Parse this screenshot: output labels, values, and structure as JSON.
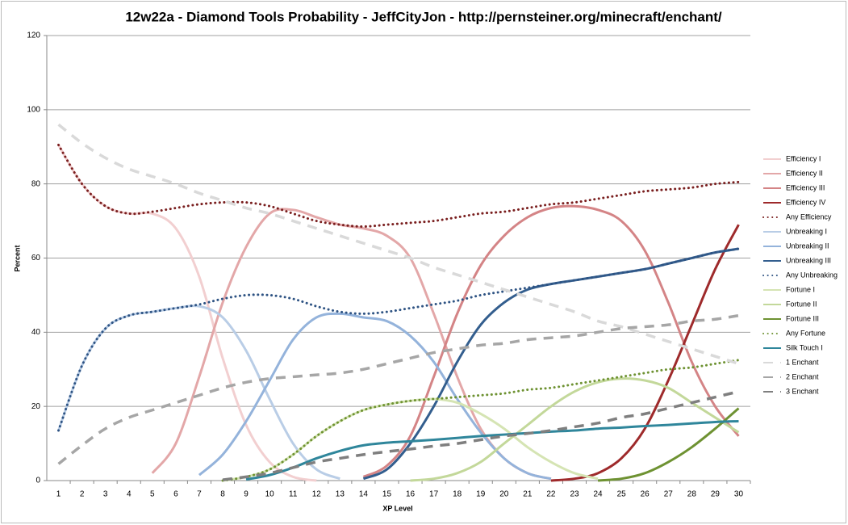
{
  "chart_data": {
    "type": "line",
    "title": "12w22a - Diamond Tools Probability - JeffCityJon - http://pernsteiner.org/minecraft/enchant/",
    "x_label": "XP Level",
    "y_label": "Percent",
    "categories": [
      1,
      2,
      3,
      4,
      5,
      6,
      7,
      8,
      9,
      10,
      11,
      12,
      13,
      14,
      15,
      16,
      17,
      18,
      19,
      20,
      21,
      22,
      23,
      24,
      25,
      26,
      27,
      28,
      29,
      30
    ],
    "ylim": [
      0,
      120
    ],
    "yticks": [
      0,
      20,
      40,
      60,
      80,
      100,
      120
    ],
    "grid": true,
    "legend": "right",
    "series": [
      {
        "name": "Efficiency I",
        "color": "#f2cfd0",
        "style": "solid",
        "values": [
          90.5,
          80,
          74,
          72,
          72,
          68,
          55,
          33,
          15,
          5,
          1,
          0,
          null,
          null,
          null,
          null,
          null,
          null,
          null,
          null,
          null,
          null,
          null,
          null,
          null,
          null,
          null,
          null,
          null,
          null
        ]
      },
      {
        "name": "Efficiency II",
        "color": "#e3a7a8",
        "style": "solid",
        "values": [
          null,
          null,
          null,
          null,
          2,
          10,
          28,
          48,
          63,
          72,
          73,
          71,
          69,
          68,
          66,
          60,
          45,
          28,
          14,
          6,
          2,
          0.5,
          null,
          null,
          null,
          null,
          null,
          null,
          null,
          null
        ]
      },
      {
        "name": "Efficiency III",
        "color": "#d48486",
        "style": "solid",
        "values": [
          null,
          null,
          null,
          null,
          null,
          null,
          null,
          null,
          null,
          null,
          null,
          null,
          null,
          1,
          4,
          12,
          28,
          45,
          58,
          66,
          71,
          73.5,
          74,
          73,
          70,
          62,
          48,
          32,
          20,
          12
        ]
      },
      {
        "name": "Efficiency IV",
        "color": "#9e2a2b",
        "style": "solid",
        "values": [
          null,
          null,
          null,
          null,
          null,
          null,
          null,
          null,
          null,
          null,
          null,
          null,
          null,
          null,
          null,
          null,
          null,
          null,
          null,
          null,
          null,
          0,
          0.5,
          2,
          6,
          14,
          27,
          42,
          57,
          69
        ]
      },
      {
        "name": "Any Efficiency",
        "color": "#7a1f1f",
        "style": "dotted",
        "values": [
          90.5,
          80,
          74,
          72,
          72.5,
          73.5,
          74.5,
          75,
          75,
          74,
          72,
          70,
          69,
          68.5,
          69,
          69.5,
          70,
          71,
          72,
          72.5,
          73.5,
          74.5,
          75,
          76,
          77,
          78,
          78.5,
          79,
          80,
          80.5
        ]
      },
      {
        "name": "Unbreaking I",
        "color": "#b9cde6",
        "style": "solid",
        "values": [
          13.5,
          31,
          41,
          44.5,
          45.5,
          46.5,
          47,
          44,
          35,
          22,
          10,
          3,
          0.5,
          null,
          null,
          null,
          null,
          null,
          null,
          null,
          null,
          null,
          null,
          null,
          null,
          null,
          null,
          null,
          null,
          null
        ]
      },
      {
        "name": "Unbreaking II",
        "color": "#94b3db",
        "style": "solid",
        "values": [
          null,
          null,
          null,
          null,
          null,
          null,
          1.5,
          7,
          16,
          27,
          38,
          44,
          45,
          44,
          43,
          39,
          32,
          22,
          13,
          6,
          2,
          0.5,
          null,
          null,
          null,
          null,
          null,
          null,
          null,
          null
        ]
      },
      {
        "name": "Unbreaking III",
        "color": "#335e8e",
        "style": "solid",
        "values": [
          null,
          null,
          null,
          null,
          null,
          null,
          null,
          null,
          null,
          null,
          null,
          null,
          null,
          0.5,
          3,
          10,
          20,
          32,
          42,
          48,
          51.5,
          53,
          54,
          55,
          56,
          57,
          58.5,
          60,
          61.5,
          62.5
        ]
      },
      {
        "name": "Any Unbreaking",
        "color": "#2e5383",
        "style": "dotted",
        "values": [
          13.5,
          31,
          41,
          44.5,
          45.5,
          46.5,
          47.5,
          49,
          50,
          50,
          49,
          47,
          45.5,
          45,
          45.5,
          46.5,
          47.5,
          48.5,
          50,
          51,
          52,
          53,
          54,
          55,
          56,
          57,
          58.5,
          60,
          61.5,
          62.5
        ]
      },
      {
        "name": "Fortune I",
        "color": "#d5e4b3",
        "style": "solid",
        "values": [
          null,
          null,
          null,
          null,
          null,
          null,
          null,
          0,
          1,
          3,
          7,
          12,
          16,
          19,
          20.5,
          21.5,
          22,
          21,
          18,
          14,
          9,
          5,
          2,
          0.5,
          null,
          null,
          null,
          null,
          null,
          null
        ]
      },
      {
        "name": "Fortune II",
        "color": "#c3d89a",
        "style": "solid",
        "values": [
          null,
          null,
          null,
          null,
          null,
          null,
          null,
          null,
          null,
          null,
          null,
          null,
          null,
          null,
          null,
          0,
          0.5,
          2,
          5,
          10,
          15,
          20,
          24,
          26.5,
          27.5,
          27,
          25,
          21,
          17,
          13
        ]
      },
      {
        "name": "Fortune III",
        "color": "#6e9232",
        "style": "solid",
        "values": [
          null,
          null,
          null,
          null,
          null,
          null,
          null,
          null,
          null,
          null,
          null,
          null,
          null,
          null,
          null,
          null,
          null,
          null,
          null,
          null,
          null,
          null,
          null,
          0,
          0.5,
          2,
          5,
          9,
          14,
          19.5
        ]
      },
      {
        "name": "Any Fortune",
        "color": "#6e9232",
        "style": "dotted",
        "values": [
          null,
          null,
          null,
          null,
          null,
          null,
          null,
          0,
          1,
          3,
          7,
          12,
          16,
          19,
          20.5,
          21.5,
          22,
          22.5,
          23,
          23.5,
          24.5,
          25,
          26,
          27,
          28,
          29,
          30,
          30.5,
          31.5,
          32.5
        ]
      },
      {
        "name": "Silk Touch I",
        "color": "#2f869b",
        "style": "solid",
        "values": [
          null,
          null,
          null,
          null,
          null,
          null,
          null,
          null,
          0.3,
          1.5,
          3.5,
          6,
          8,
          9.5,
          10.2,
          10.6,
          11,
          11.5,
          12,
          12.4,
          12.8,
          13.2,
          13.5,
          14,
          14.3,
          14.7,
          15,
          15.4,
          15.8,
          16
        ]
      },
      {
        "name": "1 Enchant",
        "color": "#d9d9d9",
        "style": "dashed",
        "values": [
          96,
          91,
          87,
          84,
          82,
          80,
          77.5,
          75.5,
          73.5,
          72,
          70,
          68,
          66,
          64,
          62,
          60,
          57.5,
          55.5,
          53.5,
          51.5,
          49.5,
          47.5,
          45.5,
          43,
          41.5,
          39.5,
          37.5,
          35.5,
          33.5,
          31.5
        ]
      },
      {
        "name": "2 Enchant",
        "color": "#a6a6a6",
        "style": "dashed",
        "values": [
          4.5,
          9.5,
          14,
          17,
          19,
          21,
          23,
          25,
          26.5,
          27.5,
          28,
          28.5,
          29,
          30,
          31.5,
          33,
          34.5,
          35.5,
          36.5,
          37,
          38,
          38.5,
          39,
          40,
          41,
          41.5,
          42,
          43,
          43.5,
          44.5
        ]
      },
      {
        "name": "3 Enchant",
        "color": "#7f7f7f",
        "style": "dashed",
        "values": [
          null,
          null,
          null,
          null,
          null,
          null,
          null,
          0.2,
          1,
          2,
          3.5,
          5,
          6,
          7,
          7.8,
          8.5,
          9.3,
          10,
          11,
          12,
          12.7,
          13.5,
          14.5,
          15.5,
          17,
          18,
          19.5,
          21,
          22.5,
          24
        ]
      }
    ]
  }
}
